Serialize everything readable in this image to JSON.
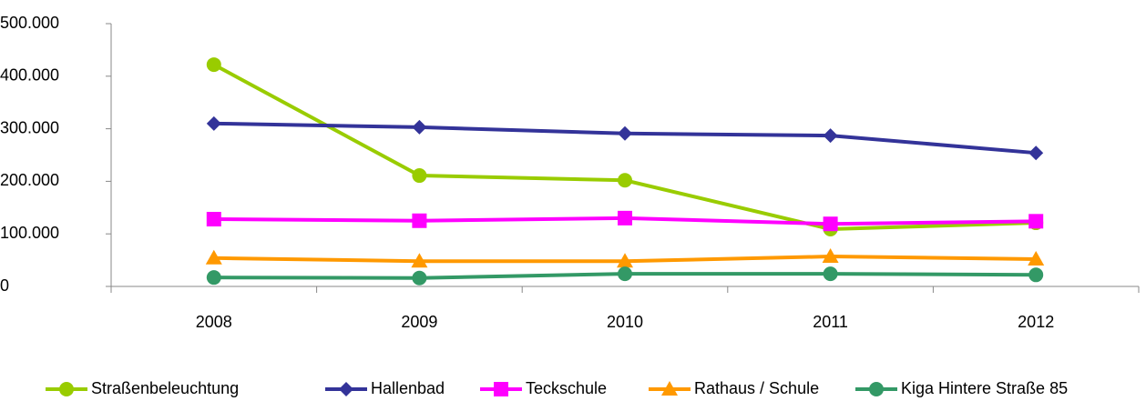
{
  "chart_data": {
    "type": "line",
    "categories": [
      "2008",
      "2009",
      "2010",
      "2011",
      "2012"
    ],
    "series": [
      {
        "name": "Straßenbeleuchtung",
        "color": "#99cc00",
        "marker": "circle",
        "values": [
          422000,
          211000,
          202000,
          109000,
          121000
        ]
      },
      {
        "name": "Hallenbad",
        "color": "#333399",
        "marker": "diamond",
        "values": [
          310000,
          303000,
          291000,
          287000,
          254000
        ]
      },
      {
        "name": "Teckschule",
        "color": "#ff00ff",
        "marker": "square",
        "values": [
          128000,
          125000,
          130000,
          119000,
          124000
        ]
      },
      {
        "name": "Rathaus / Schule",
        "color": "#ff9900",
        "marker": "triangle",
        "values": [
          54000,
          48000,
          48000,
          57000,
          52000
        ]
      },
      {
        "name": "Kiga Hintere Straße 85",
        "color": "#339966",
        "marker": "circle",
        "values": [
          17000,
          16000,
          24000,
          24000,
          22000
        ]
      }
    ],
    "ylim": [
      0,
      500000
    ],
    "yticks": [
      0,
      {
        "value": 100000,
        "label": "100.000"
      },
      {
        "value": 200000,
        "label": "200.000"
      },
      {
        "value": 300000,
        "label": "300.000"
      },
      {
        "value": 400000,
        "label": "400.000"
      },
      {
        "value": 500000,
        "label": "500.000"
      }
    ],
    "grid": false,
    "legend": "bottom"
  }
}
